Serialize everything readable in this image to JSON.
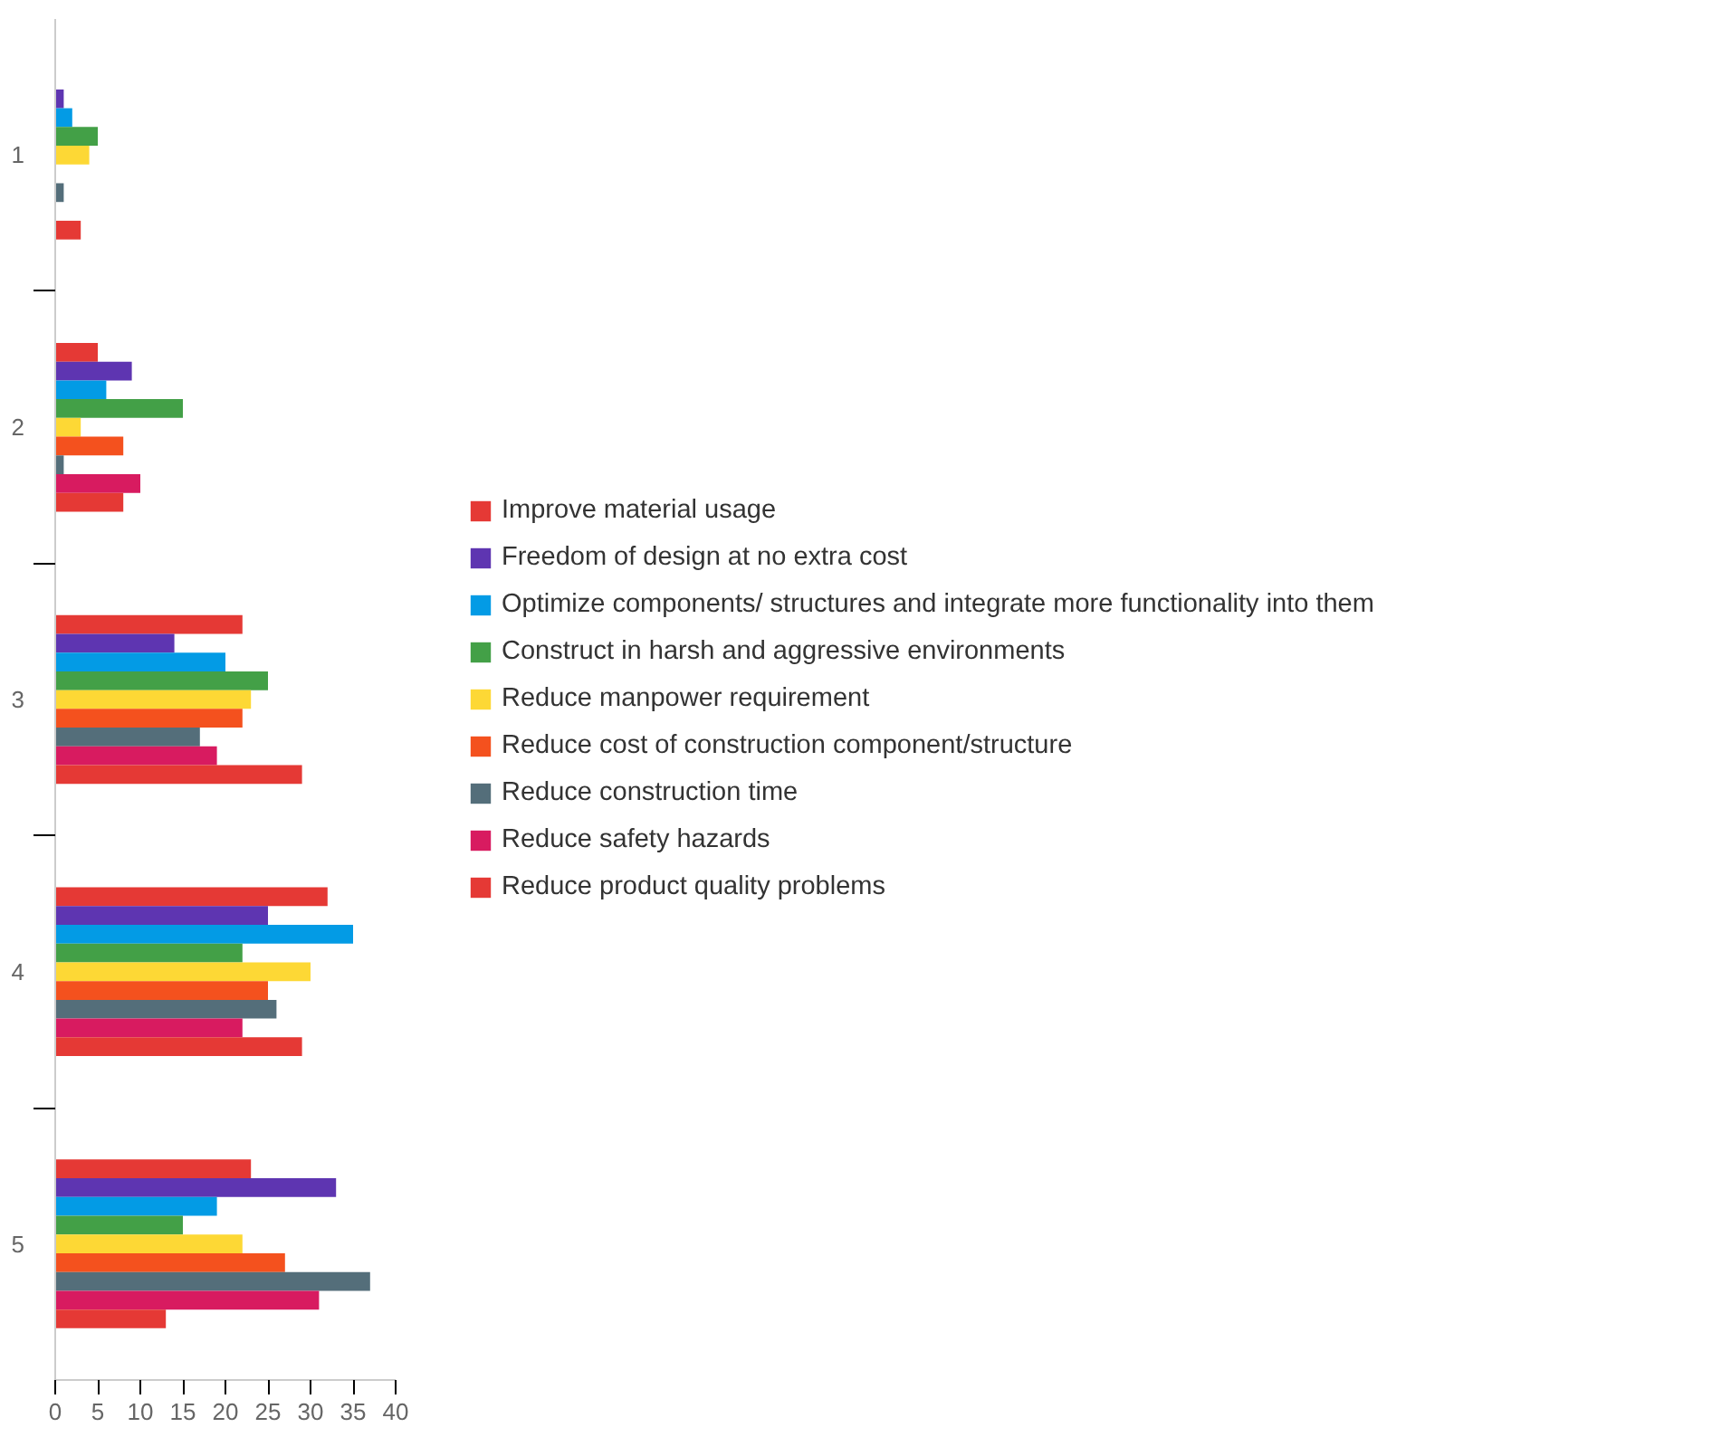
{
  "chart_data": {
    "type": "bar",
    "orientation": "horizontal",
    "categories": [
      "1",
      "2",
      "3",
      "4",
      "5"
    ],
    "series": [
      {
        "name": "Improve material usage",
        "color": "#e53935",
        "values": [
          0,
          5,
          22,
          32,
          23
        ]
      },
      {
        "name": "Freedom of design at no extra cost",
        "color": "#5e35b1",
        "values": [
          1,
          9,
          14,
          25,
          33
        ]
      },
      {
        "name": "Optimize components/ structures and integrate more functionality into them",
        "color": "#039be5",
        "values": [
          2,
          6,
          20,
          35,
          19
        ]
      },
      {
        "name": "Construct in harsh and aggressive environments",
        "color": "#43a047",
        "values": [
          5,
          15,
          25,
          22,
          15
        ]
      },
      {
        "name": "Reduce manpower requirement",
        "color": "#fdd835",
        "values": [
          4,
          3,
          23,
          30,
          22
        ]
      },
      {
        "name": "Reduce cost of construction component/structure",
        "color": "#f4511e",
        "values": [
          0,
          8,
          22,
          25,
          27
        ]
      },
      {
        "name": "Reduce construction time",
        "color": "#546e7a",
        "values": [
          1,
          1,
          17,
          26,
          37
        ]
      },
      {
        "name": "Reduce safety hazards",
        "color": "#d81b60",
        "values": [
          0,
          10,
          19,
          22,
          31
        ]
      },
      {
        "name": "Reduce product quality problems",
        "color": "#e53935",
        "values": [
          3,
          8,
          29,
          29,
          13
        ]
      }
    ],
    "xlim": [
      0,
      40
    ],
    "xticks": [
      0,
      5,
      10,
      15,
      20,
      25,
      30,
      35,
      40
    ],
    "grid": false,
    "legend": "right"
  }
}
